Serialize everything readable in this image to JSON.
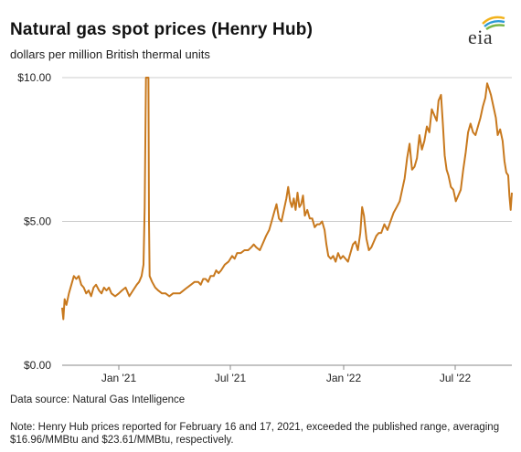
{
  "header": {
    "title": "Natural gas spot prices (Henry Hub)",
    "subtitle": "dollars per million British thermal units",
    "logo_text": "eia"
  },
  "footer": {
    "source": "Data source: Natural Gas Intelligence",
    "note": "Note: Henry Hub prices reported for February 16 and 17, 2021, exceeded the published range, averaging $16.96/MMBtu and $23.61/MMBtu, respectively."
  },
  "colors": {
    "line": "#c8791e",
    "grid": "#cccccc",
    "axis": "#888888"
  },
  "chart_data": {
    "type": "line",
    "title": "Natural gas spot prices (Henry Hub)",
    "ylabel": "dollars per million British thermal units",
    "xlim": [
      "2020-10-01",
      "2022-10-01"
    ],
    "ylim": [
      0,
      10
    ],
    "yticks": [
      {
        "value": 0,
        "label": "$0.00"
      },
      {
        "value": 5,
        "label": "$5.00"
      },
      {
        "value": 10,
        "label": "$10.00"
      }
    ],
    "xticks": [
      {
        "date": "2021-01-01",
        "label": "Jan '21"
      },
      {
        "date": "2021-07-01",
        "label": "Jul '21"
      },
      {
        "date": "2022-01-01",
        "label": "Jan '22"
      },
      {
        "date": "2022-07-01",
        "label": "Jul '22"
      }
    ],
    "grid": true,
    "series": [
      {
        "values": [
          [
            "2020-10-01",
            2.0
          ],
          [
            "2020-10-03",
            1.6
          ],
          [
            "2020-10-05",
            2.3
          ],
          [
            "2020-10-08",
            2.1
          ],
          [
            "2020-10-12",
            2.5
          ],
          [
            "2020-10-16",
            2.8
          ],
          [
            "2020-10-20",
            3.1
          ],
          [
            "2020-10-24",
            3.0
          ],
          [
            "2020-10-28",
            3.1
          ],
          [
            "2020-11-01",
            2.8
          ],
          [
            "2020-11-05",
            2.7
          ],
          [
            "2020-11-09",
            2.5
          ],
          [
            "2020-11-13",
            2.6
          ],
          [
            "2020-11-17",
            2.4
          ],
          [
            "2020-11-21",
            2.7
          ],
          [
            "2020-11-25",
            2.8
          ],
          [
            "2020-11-30",
            2.6
          ],
          [
            "2020-12-04",
            2.5
          ],
          [
            "2020-12-08",
            2.7
          ],
          [
            "2020-12-12",
            2.6
          ],
          [
            "2020-12-16",
            2.7
          ],
          [
            "2020-12-20",
            2.5
          ],
          [
            "2020-12-26",
            2.4
          ],
          [
            "2021-01-01",
            2.5
          ],
          [
            "2021-01-06",
            2.6
          ],
          [
            "2021-01-12",
            2.7
          ],
          [
            "2021-01-18",
            2.4
          ],
          [
            "2021-01-24",
            2.6
          ],
          [
            "2021-01-30",
            2.8
          ],
          [
            "2021-02-03",
            2.9
          ],
          [
            "2021-02-07",
            3.1
          ],
          [
            "2021-02-10",
            3.5
          ],
          [
            "2021-02-12",
            5.5
          ],
          [
            "2021-02-14",
            10.0
          ],
          [
            "2021-02-18",
            10.0
          ],
          [
            "2021-02-19",
            5.0
          ],
          [
            "2021-02-20",
            3.1
          ],
          [
            "2021-02-24",
            2.9
          ],
          [
            "2021-03-01",
            2.7
          ],
          [
            "2021-03-06",
            2.6
          ],
          [
            "2021-03-12",
            2.5
          ],
          [
            "2021-03-18",
            2.5
          ],
          [
            "2021-03-24",
            2.4
          ],
          [
            "2021-03-30",
            2.5
          ],
          [
            "2021-04-05",
            2.5
          ],
          [
            "2021-04-10",
            2.5
          ],
          [
            "2021-04-16",
            2.6
          ],
          [
            "2021-04-22",
            2.7
          ],
          [
            "2021-04-28",
            2.8
          ],
          [
            "2021-05-04",
            2.9
          ],
          [
            "2021-05-10",
            2.9
          ],
          [
            "2021-05-14",
            2.8
          ],
          [
            "2021-05-18",
            3.0
          ],
          [
            "2021-05-22",
            3.0
          ],
          [
            "2021-05-26",
            2.9
          ],
          [
            "2021-05-30",
            3.1
          ],
          [
            "2021-06-04",
            3.1
          ],
          [
            "2021-06-08",
            3.3
          ],
          [
            "2021-06-12",
            3.2
          ],
          [
            "2021-06-16",
            3.3
          ],
          [
            "2021-06-22",
            3.5
          ],
          [
            "2021-06-28",
            3.6
          ],
          [
            "2021-07-04",
            3.8
          ],
          [
            "2021-07-08",
            3.7
          ],
          [
            "2021-07-12",
            3.9
          ],
          [
            "2021-07-18",
            3.9
          ],
          [
            "2021-07-24",
            4.0
          ],
          [
            "2021-07-30",
            4.0
          ],
          [
            "2021-08-04",
            4.1
          ],
          [
            "2021-08-08",
            4.2
          ],
          [
            "2021-08-12",
            4.1
          ],
          [
            "2021-08-18",
            4.0
          ],
          [
            "2021-08-24",
            4.3
          ],
          [
            "2021-08-28",
            4.5
          ],
          [
            "2021-09-02",
            4.7
          ],
          [
            "2021-09-06",
            5.0
          ],
          [
            "2021-09-10",
            5.3
          ],
          [
            "2021-09-14",
            5.6
          ],
          [
            "2021-09-18",
            5.1
          ],
          [
            "2021-09-22",
            5.0
          ],
          [
            "2021-09-26",
            5.4
          ],
          [
            "2021-09-30",
            5.8
          ],
          [
            "2021-10-03",
            6.2
          ],
          [
            "2021-10-06",
            5.7
          ],
          [
            "2021-10-09",
            5.5
          ],
          [
            "2021-10-12",
            5.8
          ],
          [
            "2021-10-15",
            5.4
          ],
          [
            "2021-10-18",
            6.0
          ],
          [
            "2021-10-21",
            5.5
          ],
          [
            "2021-10-24",
            5.6
          ],
          [
            "2021-10-27",
            5.9
          ],
          [
            "2021-10-30",
            5.2
          ],
          [
            "2021-11-03",
            5.4
          ],
          [
            "2021-11-07",
            5.1
          ],
          [
            "2021-11-11",
            5.1
          ],
          [
            "2021-11-15",
            4.8
          ],
          [
            "2021-11-19",
            4.9
          ],
          [
            "2021-11-23",
            4.9
          ],
          [
            "2021-11-27",
            5.0
          ],
          [
            "2021-12-01",
            4.7
          ],
          [
            "2021-12-04",
            4.2
          ],
          [
            "2021-12-07",
            3.8
          ],
          [
            "2021-12-11",
            3.7
          ],
          [
            "2021-12-15",
            3.8
          ],
          [
            "2021-12-19",
            3.6
          ],
          [
            "2021-12-23",
            3.9
          ],
          [
            "2021-12-27",
            3.7
          ],
          [
            "2021-12-31",
            3.8
          ],
          [
            "2022-01-04",
            3.7
          ],
          [
            "2022-01-08",
            3.6
          ],
          [
            "2022-01-12",
            3.9
          ],
          [
            "2022-01-16",
            4.2
          ],
          [
            "2022-01-20",
            4.3
          ],
          [
            "2022-01-24",
            4.0
          ],
          [
            "2022-01-28",
            4.6
          ],
          [
            "2022-01-31",
            5.5
          ],
          [
            "2022-02-03",
            5.2
          ],
          [
            "2022-02-07",
            4.4
          ],
          [
            "2022-02-11",
            4.0
          ],
          [
            "2022-02-15",
            4.1
          ],
          [
            "2022-02-19",
            4.3
          ],
          [
            "2022-02-23",
            4.5
          ],
          [
            "2022-02-27",
            4.6
          ],
          [
            "2022-03-03",
            4.6
          ],
          [
            "2022-03-08",
            4.9
          ],
          [
            "2022-03-13",
            4.7
          ],
          [
            "2022-03-18",
            5.0
          ],
          [
            "2022-03-23",
            5.3
          ],
          [
            "2022-03-28",
            5.5
          ],
          [
            "2022-04-02",
            5.7
          ],
          [
            "2022-04-06",
            6.1
          ],
          [
            "2022-04-10",
            6.5
          ],
          [
            "2022-04-14",
            7.2
          ],
          [
            "2022-04-18",
            7.7
          ],
          [
            "2022-04-22",
            6.8
          ],
          [
            "2022-04-26",
            6.9
          ],
          [
            "2022-04-30",
            7.2
          ],
          [
            "2022-05-04",
            8.0
          ],
          [
            "2022-05-08",
            7.5
          ],
          [
            "2022-05-12",
            7.8
          ],
          [
            "2022-05-16",
            8.3
          ],
          [
            "2022-05-20",
            8.1
          ],
          [
            "2022-05-24",
            8.9
          ],
          [
            "2022-05-28",
            8.7
          ],
          [
            "2022-06-01",
            8.5
          ],
          [
            "2022-06-04",
            9.2
          ],
          [
            "2022-06-08",
            9.4
          ],
          [
            "2022-06-11",
            8.4
          ],
          [
            "2022-06-14",
            7.3
          ],
          [
            "2022-06-17",
            6.8
          ],
          [
            "2022-06-20",
            6.6
          ],
          [
            "2022-06-24",
            6.2
          ],
          [
            "2022-06-28",
            6.1
          ],
          [
            "2022-07-02",
            5.7
          ],
          [
            "2022-07-06",
            5.9
          ],
          [
            "2022-07-10",
            6.1
          ],
          [
            "2022-07-14",
            6.8
          ],
          [
            "2022-07-18",
            7.4
          ],
          [
            "2022-07-22",
            8.1
          ],
          [
            "2022-07-26",
            8.4
          ],
          [
            "2022-07-30",
            8.1
          ],
          [
            "2022-08-03",
            8.0
          ],
          [
            "2022-08-07",
            8.3
          ],
          [
            "2022-08-11",
            8.6
          ],
          [
            "2022-08-15",
            9.0
          ],
          [
            "2022-08-19",
            9.3
          ],
          [
            "2022-08-22",
            9.8
          ],
          [
            "2022-08-25",
            9.6
          ],
          [
            "2022-08-28",
            9.4
          ],
          [
            "2022-09-01",
            9.0
          ],
          [
            "2022-09-05",
            8.6
          ],
          [
            "2022-09-08",
            8.0
          ],
          [
            "2022-09-12",
            8.2
          ],
          [
            "2022-09-16",
            7.8
          ],
          [
            "2022-09-19",
            7.1
          ],
          [
            "2022-09-22",
            6.7
          ],
          [
            "2022-09-25",
            6.6
          ],
          [
            "2022-09-27",
            5.9
          ],
          [
            "2022-09-29",
            5.4
          ],
          [
            "2022-10-01",
            6.0
          ]
        ]
      }
    ]
  }
}
